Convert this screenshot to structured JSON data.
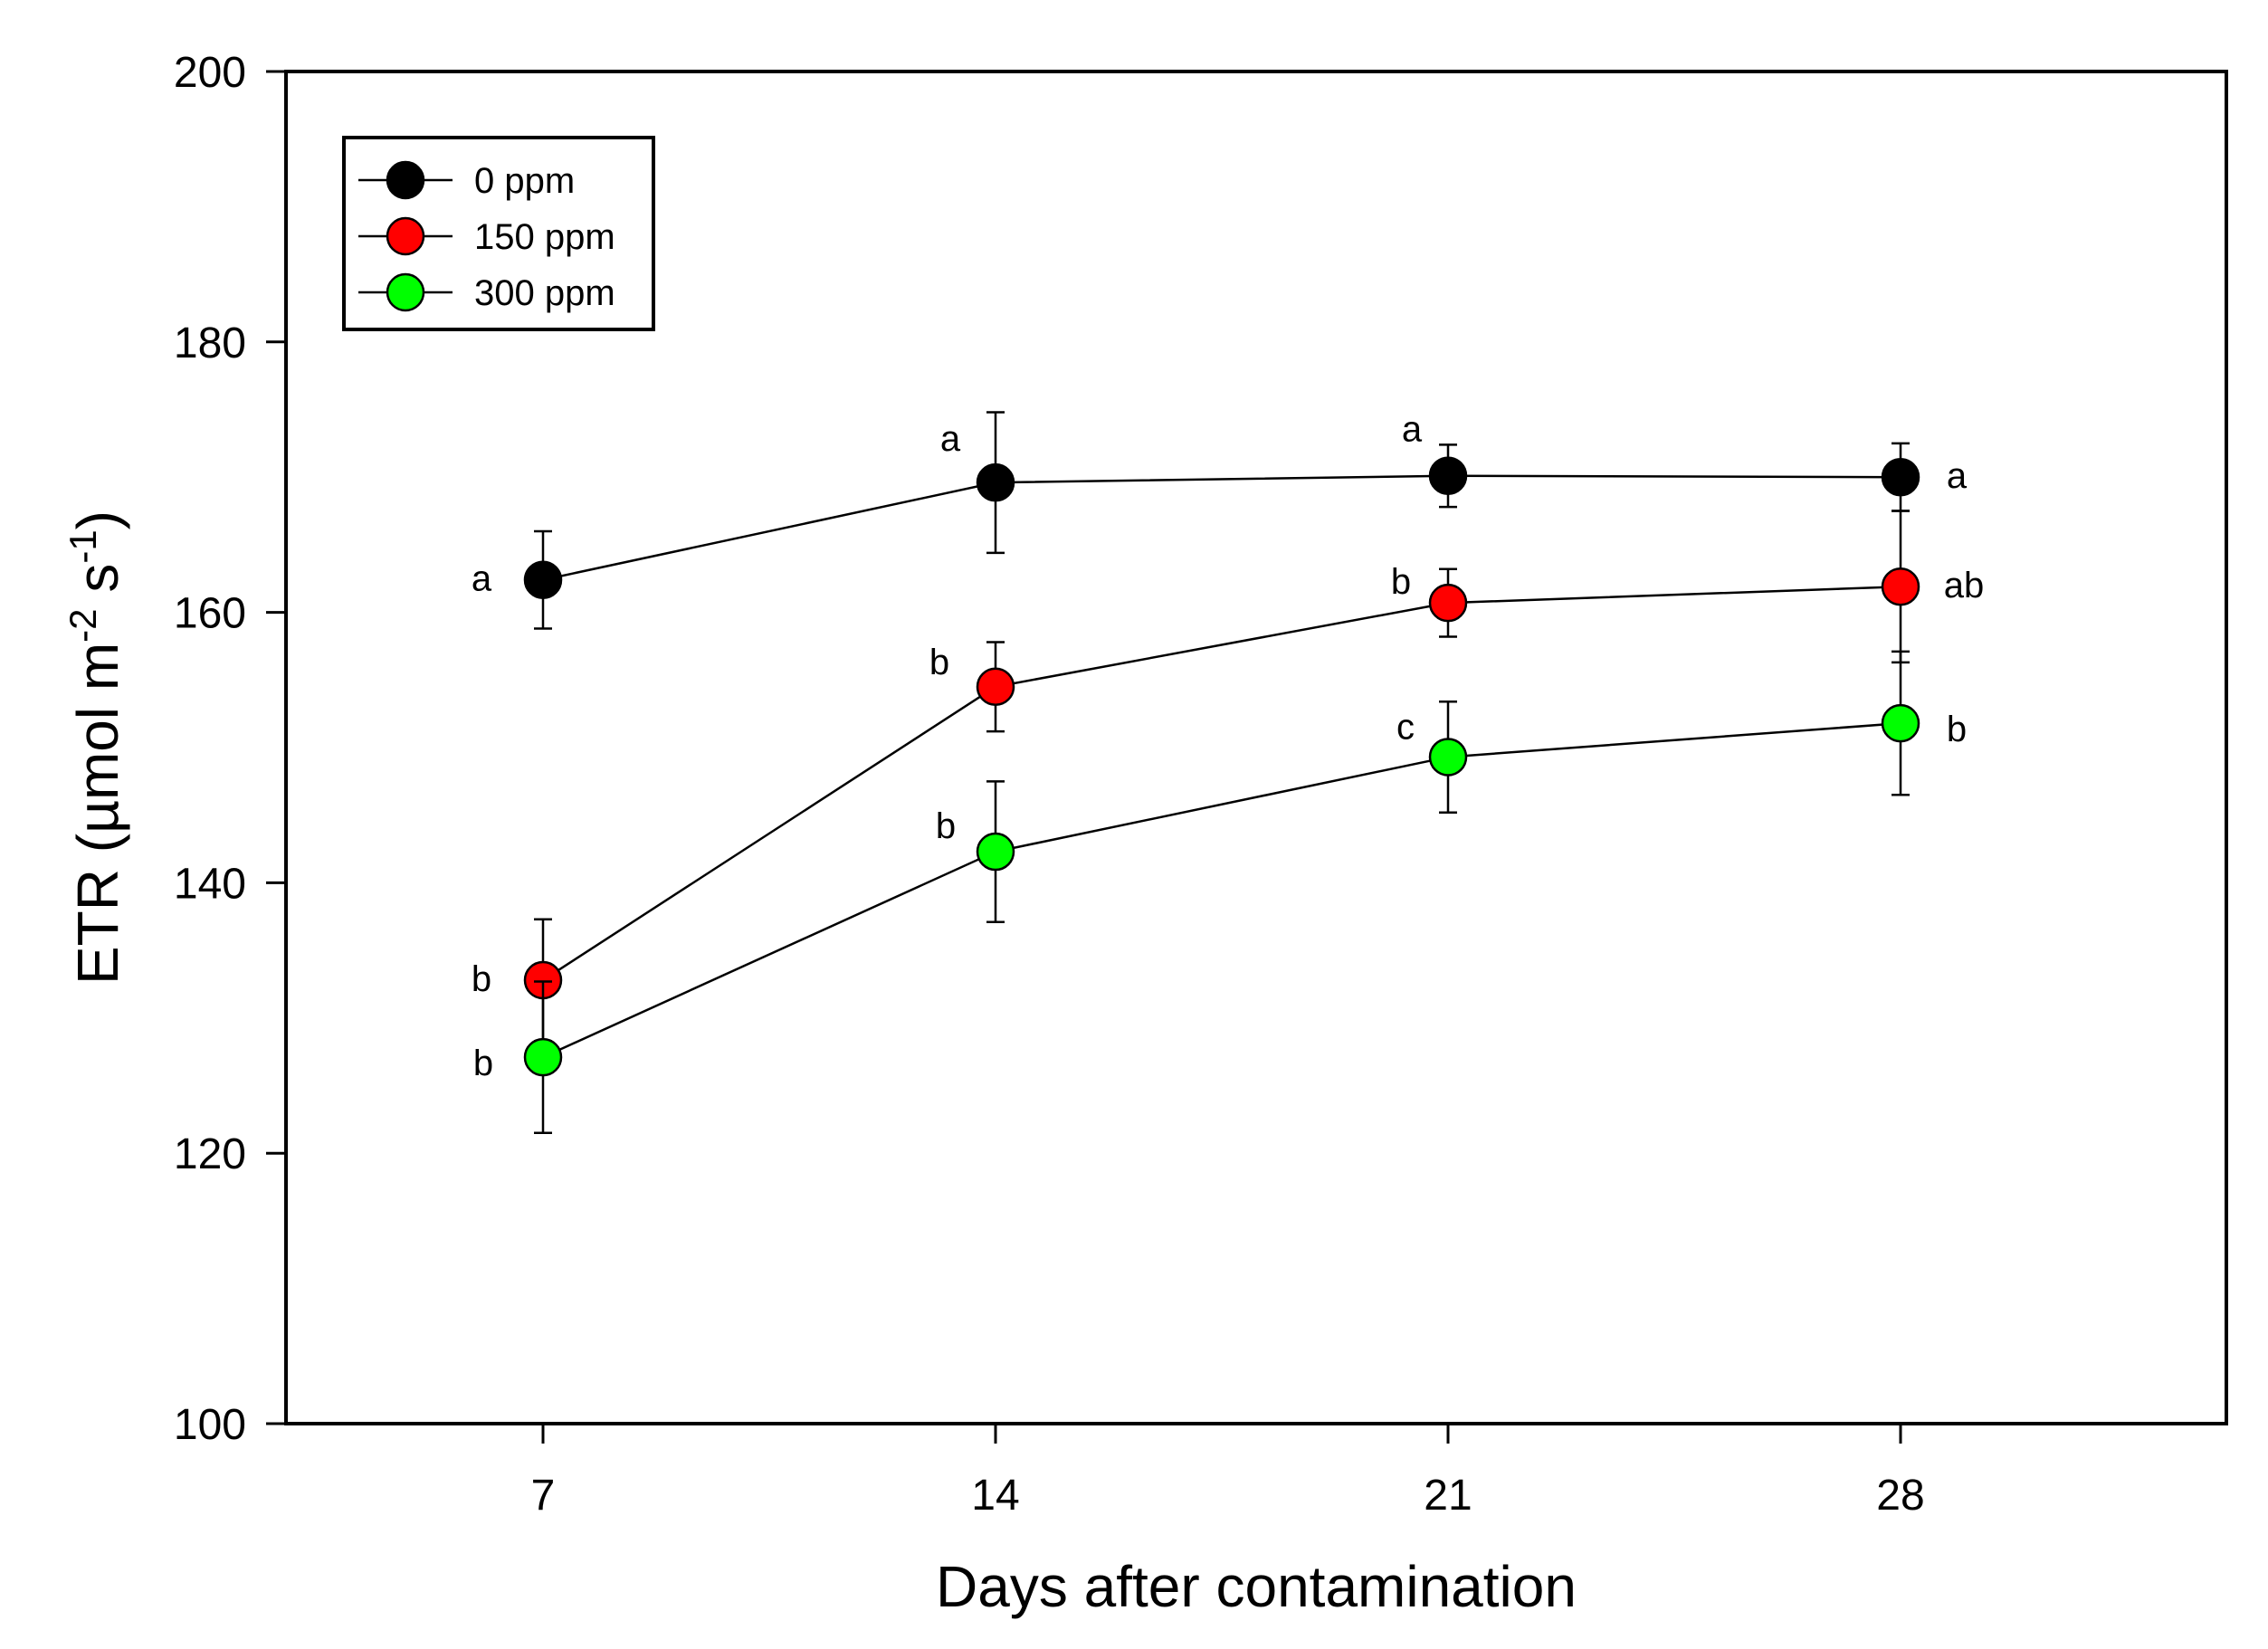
{
  "chart_data": {
    "type": "line",
    "title": "",
    "xlabel": "Days after contamination",
    "ylabel": {
      "base": "ETR (µmol m",
      "sup1": "-2",
      "mid": " s",
      "sup2": "-1",
      "end": ")"
    },
    "ylim": [
      100,
      200
    ],
    "yticks": [
      "100",
      "120",
      "140",
      "160",
      "180",
      "200"
    ],
    "x": [
      7,
      14,
      21,
      28
    ],
    "xticks": [
      "7",
      "14",
      "21",
      "28"
    ],
    "grid": false,
    "legend": "top-left",
    "series": [
      {
        "name": "0 ppm",
        "color": "#000000",
        "values": [
          162.4,
          169.6,
          170.1,
          170.0
        ],
        "errors": [
          3.6,
          5.2,
          2.3,
          2.5
        ],
        "letters": [
          "a",
          "a",
          "a",
          "a"
        ]
      },
      {
        "name": "150 ppm",
        "color": "#ff0000",
        "values": [
          132.8,
          154.5,
          160.7,
          161.9
        ],
        "errors": [
          4.5,
          3.3,
          2.5,
          5.6
        ],
        "letters": [
          "b",
          "b",
          "b",
          "ab"
        ]
      },
      {
        "name": "300 ppm",
        "color": "#00ff00",
        "values": [
          127.1,
          142.3,
          149.3,
          151.8
        ],
        "errors": [
          5.6,
          5.2,
          4.1,
          5.3
        ],
        "letters": [
          "b",
          "b",
          "c",
          "b"
        ]
      }
    ]
  }
}
